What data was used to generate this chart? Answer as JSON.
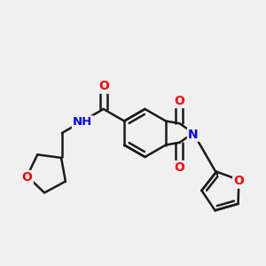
{
  "bg_color": "#f0f0f0",
  "bond_color": "#1a1a1a",
  "N_color": "#0000ff",
  "O_color": "#ff0000",
  "lw": 1.8,
  "fs": 10,
  "fig_size": [
    3.0,
    3.0
  ],
  "dpi": 100,
  "bl": 1.0,
  "xlim": [
    -5.5,
    5.5
  ],
  "ylim": [
    -4.5,
    4.5
  ]
}
